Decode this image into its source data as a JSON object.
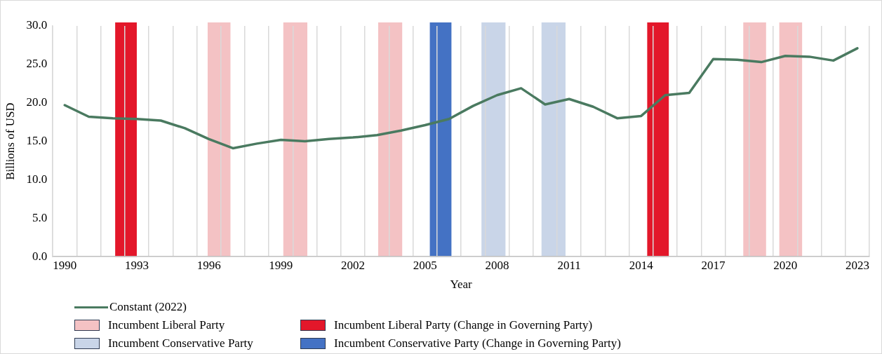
{
  "chart_data": {
    "type": "line",
    "xlabel": "Year",
    "ylabel": "Billions of USD",
    "x": [
      1990,
      1991,
      1992,
      1993,
      1994,
      1995,
      1996,
      1997,
      1998,
      1999,
      2000,
      2001,
      2002,
      2003,
      2004,
      2005,
      2006,
      2007,
      2008,
      2009,
      2010,
      2011,
      2012,
      2013,
      2014,
      2015,
      2016,
      2017,
      2018,
      2019,
      2020,
      2021,
      2022,
      2023
    ],
    "series": [
      {
        "name": "Constant (2022)",
        "color": "#4a7a60",
        "values": [
          19.7,
          18.2,
          18.0,
          17.9,
          17.7,
          16.7,
          15.3,
          14.1,
          14.7,
          15.2,
          15.0,
          15.3,
          15.5,
          15.8,
          16.4,
          17.1,
          17.9,
          19.6,
          21.0,
          21.9,
          19.8,
          20.5,
          19.5,
          18.0,
          18.3,
          21.0,
          21.3,
          25.7,
          25.6,
          25.3,
          26.1,
          26.0,
          25.5,
          27.1
        ]
      }
    ],
    "xlim": [
      1989.5,
      2023.5
    ],
    "xticks": [
      {
        "value": 1989.5,
        "label": null
      },
      1990,
      {
        "value": 1990.5,
        "label": null
      },
      {
        "value": 1991.5,
        "label": null
      },
      {
        "value": 1992.5,
        "label": null
      },
      1993,
      {
        "value": 1993.5,
        "label": null
      },
      {
        "value": 1994.5,
        "label": null
      },
      {
        "value": 1995.5,
        "label": null
      },
      1996,
      {
        "value": 1996.5,
        "label": null
      },
      {
        "value": 1997.5,
        "label": null
      },
      {
        "value": 1998.5,
        "label": null
      },
      1999,
      {
        "value": 1999.5,
        "label": null
      },
      {
        "value": 2000.5,
        "label": null
      },
      {
        "value": 2001.5,
        "label": null
      },
      2002,
      {
        "value": 2002.5,
        "label": null
      },
      {
        "value": 2003.5,
        "label": null
      },
      {
        "value": 2004.5,
        "label": null
      },
      2005,
      {
        "value": 2005.5,
        "label": null
      },
      {
        "value": 2006.5,
        "label": null
      },
      {
        "value": 2007.5,
        "label": null
      },
      2008,
      {
        "value": 2008.5,
        "label": null
      },
      {
        "value": 2009.5,
        "label": null
      },
      {
        "value": 2010.5,
        "label": null
      },
      2011,
      {
        "value": 2011.5,
        "label": null
      },
      {
        "value": 2012.5,
        "label": null
      },
      {
        "value": 2013.5,
        "label": null
      },
      2014,
      {
        "value": 2014.5,
        "label": null
      },
      {
        "value": 2015.5,
        "label": null
      },
      {
        "value": 2016.5,
        "label": null
      },
      2017,
      {
        "value": 2017.5,
        "label": null
      },
      {
        "value": 2018.5,
        "label": null
      },
      {
        "value": 2019.5,
        "label": null
      },
      2020,
      {
        "value": 2020.5,
        "label": null
      },
      {
        "value": 2021.5,
        "label": null
      },
      {
        "value": 2022.5,
        "label": null
      },
      2023,
      {
        "value": 2023.5,
        "label": null
      }
    ],
    "ylim": [
      0,
      30
    ],
    "yticks": [
      {
        "value": 0,
        "label": "0.0"
      },
      {
        "value": 5,
        "label": "5.0"
      },
      {
        "value": 10,
        "label": "10.0"
      },
      {
        "value": 15,
        "label": "15.0"
      },
      {
        "value": 20,
        "label": "20.0"
      },
      {
        "value": 25,
        "label": "25.0"
      },
      {
        "value": 30,
        "label": "30.0"
      }
    ],
    "grid": "x",
    "legend": "bottom",
    "marker": "none",
    "line_style": "solid",
    "bands": [
      {
        "axis": "x",
        "from": 1995.95,
        "to": 1996.9,
        "label": "Incumbent Liberal Party",
        "color": "#f4c2c4"
      },
      {
        "axis": "x",
        "from": 1992.1,
        "to": 1993.0,
        "label": "Incumbent Liberal Party (Change in Governing Party)",
        "color": "#e3172a"
      },
      {
        "axis": "x",
        "from": 2007.35,
        "to": 2008.35,
        "label": "Incumbent Conservative Party",
        "color": "#c9d5e8"
      },
      {
        "axis": "x",
        "from": 2005.2,
        "to": 2006.1,
        "label": "Incumbent Conservative Party (Change in Governing Party)",
        "color": "#4472c4"
      },
      {
        "axis": "x",
        "from": 1999.1,
        "to": 2000.1,
        "color": "#f4c2c4"
      },
      {
        "axis": "x",
        "from": 2003.05,
        "to": 2004.05,
        "color": "#f4c2c4"
      },
      {
        "axis": "x",
        "from": 2009.85,
        "to": 2010.85,
        "color": "#c9d5e8"
      },
      {
        "axis": "x",
        "from": 2014.25,
        "to": 2015.15,
        "color": "#e3172a"
      },
      {
        "axis": "x",
        "from": 2018.25,
        "to": 2019.2,
        "color": "#f4c2c4"
      },
      {
        "axis": "x",
        "from": 2019.75,
        "to": 2020.7,
        "color": "#f4c2c4"
      }
    ]
  }
}
